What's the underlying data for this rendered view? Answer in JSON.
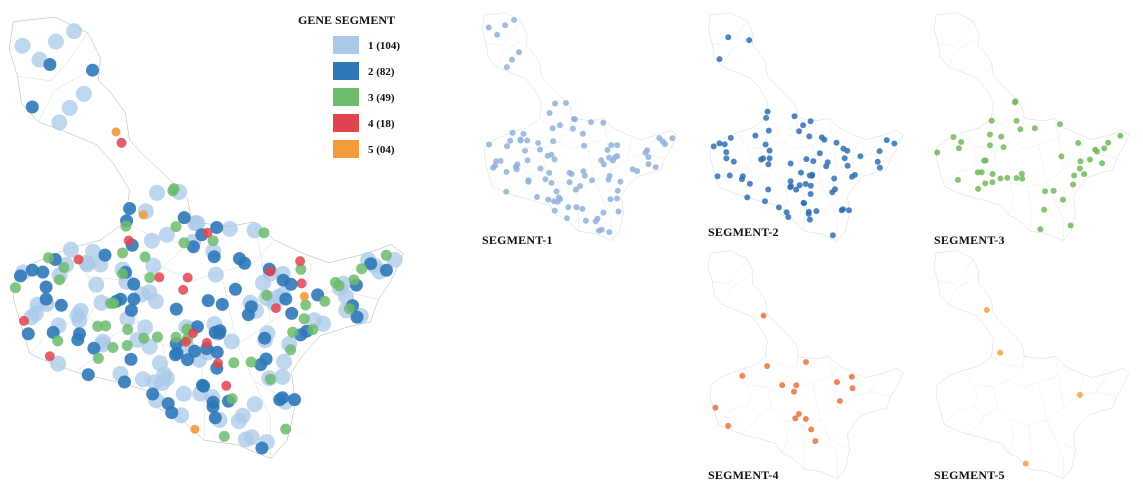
{
  "legend": {
    "title": "GENE SEGMENT",
    "items": [
      {
        "label": "1 (104)",
        "color": "#a9c9e8"
      },
      {
        "label": "2 (82)",
        "color": "#2f78b8"
      },
      {
        "label": "3 (49)",
        "color": "#6dbb6d"
      },
      {
        "label": "4 (18)",
        "color": "#e0454f"
      },
      {
        "label": "5 (04)",
        "color": "#f39a3c"
      }
    ]
  },
  "panels": [
    {
      "label": "SEGMENT-1",
      "color": "#8fb0dc"
    },
    {
      "label": "SEGMENT-2",
      "color": "#2f6fb5"
    },
    {
      "label": "SEGMENT-3",
      "color": "#72b85a"
    },
    {
      "label": "SEGMENT-4",
      "color": "#e8733c"
    },
    {
      "label": "SEGMENT-5",
      "color": "#f2a23c"
    }
  ],
  "colors": {
    "boundary": "#8a8a8a",
    "background": "#ffffff"
  }
}
